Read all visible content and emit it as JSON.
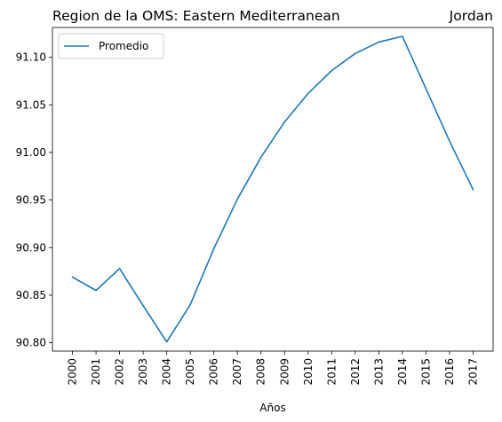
{
  "chart_data": {
    "type": "line",
    "title_left": "Region de la OMS: Eastern Mediterranean",
    "title_right": "Jordan",
    "xlabel": "Años",
    "ylabel": "",
    "x": [
      "2000",
      "2001",
      "2002",
      "2003",
      "2004",
      "2005",
      "2006",
      "2007",
      "2008",
      "2009",
      "2010",
      "2011",
      "2012",
      "2013",
      "2014",
      "2015",
      "2016",
      "2017"
    ],
    "series": [
      {
        "name": "Promedio",
        "color": "#1f77b4",
        "values": [
          90.869,
          90.855,
          90.878,
          90.839,
          90.801,
          90.84,
          90.899,
          90.951,
          90.995,
          91.032,
          91.062,
          91.086,
          91.104,
          91.116,
          91.122,
          91.067,
          91.012,
          90.961
        ]
      }
    ],
    "yticks": [
      "90.80",
      "90.85",
      "90.90",
      "90.95",
      "91.00",
      "91.05",
      "91.10"
    ],
    "ylim": [
      90.7913,
      91.1313
    ],
    "legend_position": "upper-left",
    "grid": false
  }
}
